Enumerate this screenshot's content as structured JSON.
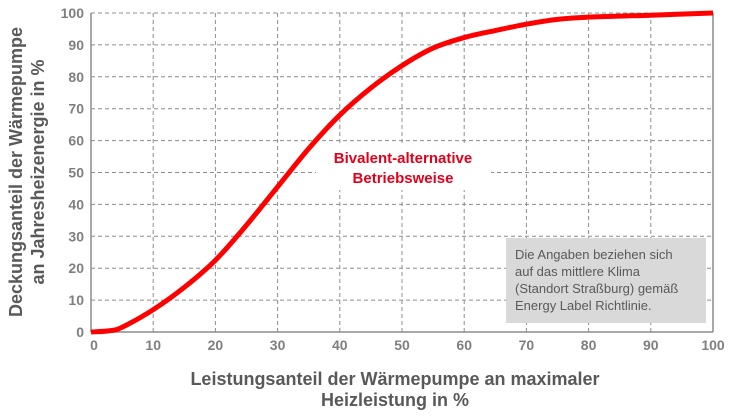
{
  "chart_data": {
    "type": "line",
    "title": "",
    "xlabel": [
      "Leistungsanteil der Wärmepumpe an maximaler",
      "Heizleistung in %"
    ],
    "ylabel": [
      "Deckungsanteil der Wärmepumpe",
      "an Jahresheizenergie in %"
    ],
    "xlim": [
      0,
      100
    ],
    "ylim": [
      0,
      100
    ],
    "xticks": [
      "0",
      "10",
      "20",
      "30",
      "40",
      "50",
      "60",
      "70",
      "80",
      "90",
      "100"
    ],
    "yticks": [
      "0",
      "10",
      "20",
      "30",
      "40",
      "50",
      "60",
      "70",
      "80",
      "90",
      "100"
    ],
    "grid": true,
    "series": [
      {
        "name": "Bivalent-alternative Betriebsweise",
        "color": "#ff0000",
        "x": [
          0,
          3,
          5,
          10,
          15,
          20,
          25,
          30,
          35,
          40,
          45,
          50,
          55,
          60,
          65,
          70,
          75,
          80,
          90,
          100
        ],
        "y": [
          0,
          0.4,
          1.5,
          7,
          14,
          22.5,
          33.5,
          45.5,
          57.5,
          68,
          76.5,
          83.5,
          89,
          92.3,
          94.5,
          96.5,
          98,
          98.7,
          99.3,
          100
        ]
      }
    ],
    "annotations": {
      "series_label": [
        "Bivalent-alternative",
        "Betriebsweise"
      ],
      "note": [
        "Die Angaben beziehen sich",
        "auf das mittlere Klima",
        "(Standort Straßburg) gemäß",
        "Energy Label Richtlinie."
      ]
    }
  }
}
